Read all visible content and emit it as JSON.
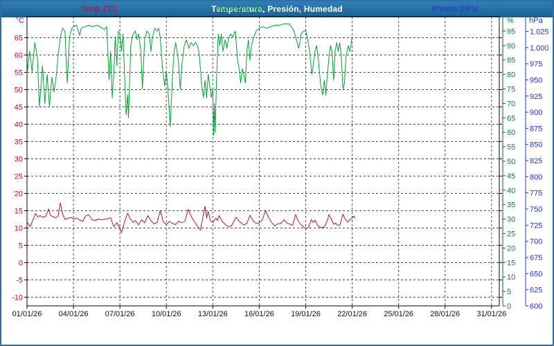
{
  "window": {
    "title": "Temperatura, Presión, Humedad"
  },
  "header_labels": {
    "temp": "Temp. [°C]",
    "hum": "Humedad [%]",
    "pres": "Presión [hPa]"
  },
  "colors": {
    "titlebar": "#2F7FB5",
    "outer_border": "#2E6DA4",
    "temp_accent": "#CC0033",
    "humidity_accent": "#008833",
    "pressure_accent": "#2233CC",
    "grid": "#444444",
    "frame": "#000000"
  },
  "chart_data": {
    "type": "line",
    "title": "Temperatura, Presión, Humedad",
    "legend_position": "top",
    "grid": {
      "dash": "3 3",
      "color": "#444444"
    },
    "x_axis": {
      "range_days": [
        0,
        30.5
      ],
      "gridline_every_days": 3,
      "tick_days": [
        0,
        3,
        6,
        9,
        12,
        15,
        18,
        21,
        24,
        27,
        30
      ],
      "tick_labels": [
        "01/01/26",
        "04/01/26",
        "07/01/26",
        "10/01/26",
        "13/01/26",
        "16/01/26",
        "19/01/26",
        "22/01/26",
        "25/01/26",
        "28/01/26",
        "31/01/26"
      ],
      "label_color": "#111111"
    },
    "y_axes": {
      "temp": {
        "unit": "°C",
        "side": "left",
        "range": [
          -12.5,
          71.1
        ],
        "ticks": [
          -10,
          -5,
          0,
          5,
          10,
          15,
          20,
          25,
          30,
          35,
          40,
          45,
          50,
          55,
          60,
          65
        ],
        "label_color": "#CC0033"
      },
      "humidity": {
        "unit": "%",
        "side": "right",
        "range": [
          0,
          100
        ],
        "ticks": [
          0,
          5,
          10,
          15,
          20,
          25,
          30,
          35,
          40,
          45,
          50,
          55,
          60,
          65,
          70,
          75,
          80,
          85,
          90,
          95
        ],
        "label_color": "#008833",
        "axis_line_color": "#006622"
      },
      "pressure": {
        "unit": "hPa",
        "side": "right",
        "range": [
          600,
          1048
        ],
        "tick_values": [
          600,
          625,
          650,
          675,
          700,
          725,
          750,
          775,
          800,
          825,
          850,
          875,
          900,
          925,
          950,
          975,
          1000,
          1025
        ],
        "tick_labels": [
          "600",
          "625",
          "650",
          "675",
          "700",
          "725",
          "750",
          "775",
          "800",
          "825",
          "850",
          "875",
          "900",
          "925",
          "950",
          "975",
          "1.000",
          "1.025"
        ],
        "label_color": "#2233CC",
        "axis_line_color": "#2233CC"
      }
    },
    "series": [
      {
        "name": "Humedad [%]",
        "axis": "humidity",
        "color": "#00A033",
        "points": [
          [
            0,
            80
          ],
          [
            0.17,
            88
          ],
          [
            0.33,
            81
          ],
          [
            0.5,
            91
          ],
          [
            0.67,
            86
          ],
          [
            0.8,
            69
          ],
          [
            1,
            83
          ],
          [
            1.15,
            70
          ],
          [
            1.3,
            80
          ],
          [
            1.45,
            69
          ],
          [
            1.6,
            79
          ],
          [
            1.75,
            74
          ],
          [
            1.9,
            80
          ],
          [
            2,
            86
          ],
          [
            2.15,
            93
          ],
          [
            2.3,
            96
          ],
          [
            2.45,
            95
          ],
          [
            2.6,
            77
          ],
          [
            2.75,
            93
          ],
          [
            2.9,
            96
          ],
          [
            3,
            96.5
          ],
          [
            3.2,
            97
          ],
          [
            3.4,
            93.5
          ],
          [
            3.5,
            96
          ],
          [
            3.75,
            96.5
          ],
          [
            4,
            97
          ],
          [
            4.25,
            96.5
          ],
          [
            4.5,
            97
          ],
          [
            4.75,
            96.5
          ],
          [
            5,
            95.5
          ],
          [
            5.15,
            96.5
          ],
          [
            5.3,
            78
          ],
          [
            5.4,
            88
          ],
          [
            5.5,
            72
          ],
          [
            5.6,
            80
          ],
          [
            5.7,
            93
          ],
          [
            5.8,
            83
          ],
          [
            5.9,
            95
          ],
          [
            6,
            94
          ],
          [
            6.1,
            88
          ],
          [
            6.2,
            94
          ],
          [
            6.3,
            80
          ],
          [
            6.4,
            66
          ],
          [
            6.5,
            73
          ],
          [
            6.55,
            65
          ],
          [
            6.7,
            90
          ],
          [
            6.85,
            94
          ],
          [
            7,
            95
          ],
          [
            7.1,
            92
          ],
          [
            7.2,
            94
          ],
          [
            7.35,
            88
          ],
          [
            7.45,
            75
          ],
          [
            7.6,
            92
          ],
          [
            7.75,
            95
          ],
          [
            7.9,
            94
          ],
          [
            8,
            88
          ],
          [
            8.1,
            93
          ],
          [
            8.25,
            96
          ],
          [
            8.4,
            95
          ],
          [
            8.5,
            96
          ],
          [
            8.6,
            93
          ],
          [
            8.75,
            82
          ],
          [
            8.9,
            76
          ],
          [
            9,
            81
          ],
          [
            9.1,
            75
          ],
          [
            9.25,
            62
          ],
          [
            9.4,
            80
          ],
          [
            9.5,
            88
          ],
          [
            9.6,
            91
          ],
          [
            9.75,
            86
          ],
          [
            9.9,
            75
          ],
          [
            10,
            83
          ],
          [
            10.15,
            90
          ],
          [
            10.3,
            92
          ],
          [
            10.45,
            89
          ],
          [
            10.6,
            91
          ],
          [
            10.75,
            90
          ],
          [
            10.9,
            91
          ],
          [
            11,
            90
          ],
          [
            11.1,
            88
          ],
          [
            11.2,
            82
          ],
          [
            11.3,
            75
          ],
          [
            11.4,
            72
          ],
          [
            11.5,
            78
          ],
          [
            11.6,
            72
          ],
          [
            11.7,
            80
          ],
          [
            11.8,
            76
          ],
          [
            11.9,
            72
          ],
          [
            12,
            75
          ],
          [
            12.05,
            59
          ],
          [
            12.1,
            70
          ],
          [
            12.15,
            60
          ],
          [
            12.25,
            80
          ],
          [
            12.35,
            94
          ],
          [
            12.45,
            90
          ],
          [
            12.55,
            94
          ],
          [
            12.65,
            88
          ],
          [
            12.8,
            92
          ],
          [
            12.9,
            89
          ],
          [
            13,
            92
          ],
          [
            13.15,
            94
          ],
          [
            13.3,
            93
          ],
          [
            13.45,
            95
          ],
          [
            13.6,
            85
          ],
          [
            13.7,
            82
          ],
          [
            13.8,
            77
          ],
          [
            13.9,
            82
          ],
          [
            14,
            80
          ],
          [
            14.1,
            77
          ],
          [
            14.2,
            88
          ],
          [
            14.3,
            92
          ],
          [
            14.4,
            85
          ],
          [
            14.5,
            90
          ],
          [
            14.65,
            93
          ],
          [
            14.8,
            95
          ],
          [
            15,
            96
          ],
          [
            15.25,
            96.5
          ],
          [
            15.5,
            96
          ],
          [
            15.75,
            96.5
          ],
          [
            16,
            97
          ],
          [
            16.3,
            97
          ],
          [
            16.6,
            97.5
          ],
          [
            16.9,
            97.5
          ],
          [
            17,
            97
          ],
          [
            17.15,
            96
          ],
          [
            17.3,
            94
          ],
          [
            17.45,
            91
          ],
          [
            17.55,
            89
          ],
          [
            17.7,
            94
          ],
          [
            17.85,
            95
          ],
          [
            18,
            95
          ],
          [
            18.1,
            93
          ],
          [
            18.25,
            88
          ],
          [
            18.4,
            80
          ],
          [
            18.5,
            84
          ],
          [
            18.6,
            88
          ],
          [
            18.7,
            90
          ],
          [
            18.8,
            86
          ],
          [
            18.9,
            80
          ],
          [
            19,
            75
          ],
          [
            19.1,
            73
          ],
          [
            19.2,
            78
          ],
          [
            19.3,
            73
          ],
          [
            19.4,
            80
          ],
          [
            19.5,
            86
          ],
          [
            19.6,
            90
          ],
          [
            19.7,
            88
          ],
          [
            19.8,
            78
          ],
          [
            19.9,
            88
          ],
          [
            20,
            91
          ],
          [
            20.1,
            88
          ],
          [
            20.2,
            91
          ],
          [
            20.3,
            86
          ],
          [
            20.4,
            75
          ],
          [
            20.5,
            77
          ],
          [
            20.6,
            86
          ],
          [
            20.75,
            90
          ],
          [
            20.85,
            88
          ],
          [
            21,
            93
          ]
        ]
      },
      {
        "name": "Temp. [°C]",
        "axis": "temp",
        "color": "#BB1122",
        "points": [
          [
            0,
            11.8
          ],
          [
            0.2,
            10.4
          ],
          [
            0.4,
            12.5
          ],
          [
            0.55,
            14.2
          ],
          [
            0.7,
            13.2
          ],
          [
            0.85,
            13.6
          ],
          [
            1,
            13.1
          ],
          [
            1.2,
            13.3
          ],
          [
            1.4,
            15.5
          ],
          [
            1.5,
            13.8
          ],
          [
            1.65,
            13.3
          ],
          [
            1.85,
            13.0
          ],
          [
            2,
            13.4
          ],
          [
            2.15,
            17.3
          ],
          [
            2.3,
            14.0
          ],
          [
            2.45,
            12.5
          ],
          [
            2.65,
            12.8
          ],
          [
            2.85,
            13.1
          ],
          [
            3,
            12.6
          ],
          [
            3.2,
            12.9
          ],
          [
            3.4,
            12.3
          ],
          [
            3.6,
            11.9
          ],
          [
            3.8,
            13.6
          ],
          [
            4,
            13.8
          ],
          [
            4.2,
            12.4
          ],
          [
            4.4,
            12.2
          ],
          [
            4.6,
            12.6
          ],
          [
            4.8,
            12.4
          ],
          [
            5,
            12.5
          ],
          [
            5.2,
            12.7
          ],
          [
            5.4,
            13.0
          ],
          [
            5.6,
            10.4
          ],
          [
            5.8,
            11.6
          ],
          [
            6,
            10.0
          ],
          [
            6.1,
            8.6
          ],
          [
            6.3,
            11.8
          ],
          [
            6.5,
            14.3
          ],
          [
            6.65,
            12.8
          ],
          [
            6.85,
            11.6
          ],
          [
            7,
            12.2
          ],
          [
            7.2,
            10.9
          ],
          [
            7.4,
            12.4
          ],
          [
            7.6,
            11.5
          ],
          [
            7.8,
            13.6
          ],
          [
            8,
            12.2
          ],
          [
            8.2,
            11.2
          ],
          [
            8.4,
            11.6
          ],
          [
            8.6,
            15.1
          ],
          [
            8.8,
            11.8
          ],
          [
            9,
            11.0
          ],
          [
            9.2,
            11.9
          ],
          [
            9.4,
            11.3
          ],
          [
            9.6,
            11.0
          ],
          [
            9.8,
            12.0
          ],
          [
            10,
            11.5
          ],
          [
            10.2,
            12.0
          ],
          [
            10.4,
            15.4
          ],
          [
            10.55,
            13.9
          ],
          [
            10.7,
            12.6
          ],
          [
            10.9,
            11.3
          ],
          [
            11,
            10.5
          ],
          [
            11.2,
            9.4
          ],
          [
            11.35,
            13.0
          ],
          [
            11.5,
            16.3
          ],
          [
            11.6,
            12.9
          ],
          [
            11.7,
            14.8
          ],
          [
            11.85,
            12.0
          ],
          [
            12,
            11.6
          ],
          [
            12.2,
            12.9
          ],
          [
            12.3,
            12.2
          ],
          [
            12.4,
            13.6
          ],
          [
            12.6,
            12.0
          ],
          [
            12.8,
            11.0
          ],
          [
            13,
            10.4
          ],
          [
            13.2,
            10.6
          ],
          [
            13.5,
            13.1
          ],
          [
            13.7,
            12.0
          ],
          [
            13.9,
            11.2
          ],
          [
            14,
            10.9
          ],
          [
            14.2,
            11.3
          ],
          [
            14.4,
            13.7
          ],
          [
            14.6,
            12.1
          ],
          [
            14.8,
            11.3
          ],
          [
            15,
            11.5
          ],
          [
            15.2,
            12.4
          ],
          [
            15.4,
            15.1
          ],
          [
            15.6,
            13.0
          ],
          [
            15.8,
            11.6
          ],
          [
            16,
            10.6
          ],
          [
            16.2,
            11.2
          ],
          [
            16.4,
            11.3
          ],
          [
            16.6,
            12.4
          ],
          [
            16.8,
            11.4
          ],
          [
            17,
            11.1
          ],
          [
            17.15,
            10.7
          ],
          [
            17.35,
            13.9
          ],
          [
            17.5,
            12.1
          ],
          [
            17.7,
            10.9
          ],
          [
            17.9,
            10.2
          ],
          [
            18,
            9.8
          ],
          [
            18.2,
            10.3
          ],
          [
            18.35,
            12.4
          ],
          [
            18.5,
            11.6
          ],
          [
            18.6,
            12.3
          ],
          [
            18.75,
            10.9
          ],
          [
            18.9,
            10.3
          ],
          [
            19,
            10.1
          ],
          [
            19.2,
            10.3
          ],
          [
            19.4,
            12.2
          ],
          [
            19.5,
            13.9
          ],
          [
            19.65,
            12.6
          ],
          [
            19.8,
            11.1
          ],
          [
            19.95,
            11.4
          ],
          [
            20,
            10.9
          ],
          [
            20.2,
            10.8
          ],
          [
            20.4,
            14.0
          ],
          [
            20.55,
            12.6
          ],
          [
            20.7,
            11.7
          ],
          [
            20.85,
            12.4
          ],
          [
            21,
            12.9
          ],
          [
            21.1,
            13.4
          ],
          [
            21.2,
            12.9
          ]
        ]
      }
    ]
  }
}
